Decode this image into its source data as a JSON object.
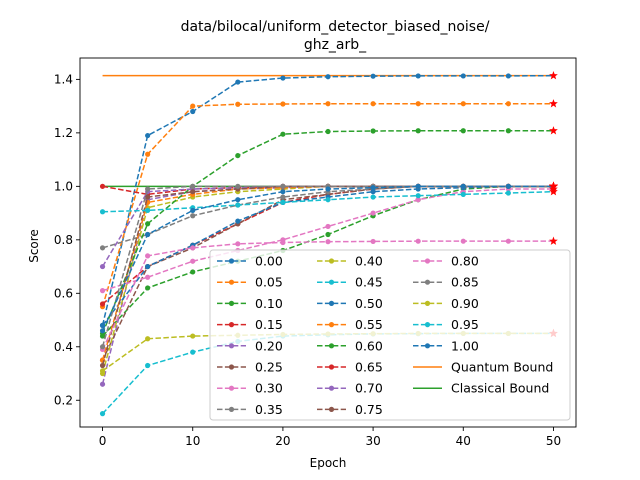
{
  "chart_data": {
    "type": "line",
    "title_lines": [
      "data/bilocal/uniform_detector_biased_noise/",
      "ghz_arb_"
    ],
    "xlabel": "Epoch",
    "ylabel": "Score",
    "xlim": [
      -2.5,
      52.5
    ],
    "ylim": [
      0.1,
      1.48
    ],
    "xticks": [
      0,
      10,
      20,
      30,
      40,
      50
    ],
    "yticks": [
      0.2,
      0.4,
      0.6,
      0.8,
      1.0,
      1.2,
      1.4
    ],
    "x": [
      0,
      5,
      10,
      15,
      20,
      25,
      30,
      35,
      40,
      45,
      50
    ],
    "legend_position": "lower-right",
    "legend_columns": 3,
    "series": [
      {
        "name": "0.00",
        "color": "#1f77b4",
        "values": [
          0.48,
          1.19,
          1.28,
          1.39,
          1.405,
          1.41,
          1.412,
          1.413,
          1.413,
          1.413,
          1.414
        ]
      },
      {
        "name": "0.05",
        "color": "#ff7f0e",
        "values": [
          0.55,
          1.12,
          1.3,
          1.307,
          1.308,
          1.309,
          1.309,
          1.309,
          1.309,
          1.309,
          1.309
        ]
      },
      {
        "name": "0.10",
        "color": "#2ca02c",
        "values": [
          0.44,
          0.62,
          0.68,
          0.72,
          0.76,
          0.82,
          0.89,
          0.95,
          0.99,
          1.0,
          1.0
        ]
      },
      {
        "name": "0.15",
        "color": "#d62728",
        "values": [
          0.56,
          0.7,
          0.78,
          0.86,
          0.94,
          0.97,
          0.99,
          1.0,
          1.0,
          1.0,
          1.0
        ]
      },
      {
        "name": "0.20",
        "color": "#9467bd",
        "values": [
          0.26,
          0.95,
          0.98,
          0.99,
          0.995,
          1.0,
          1.0,
          1.0,
          1.0,
          1.0,
          1.0
        ]
      },
      {
        "name": "0.25",
        "color": "#8c564b",
        "values": [
          0.35,
          0.7,
          0.77,
          0.86,
          0.95,
          0.97,
          0.99,
          1.0,
          1.0,
          1.0,
          1.0
        ]
      },
      {
        "name": "0.30",
        "color": "#e377c2",
        "values": [
          0.61,
          0.66,
          0.72,
          0.76,
          0.8,
          0.85,
          0.9,
          0.95,
          0.98,
          0.99,
          0.99
        ]
      },
      {
        "name": "0.35",
        "color": "#7f7f7f",
        "values": [
          0.77,
          0.82,
          0.89,
          0.93,
          0.96,
          0.98,
          0.99,
          1.0,
          1.0,
          1.0,
          1.0
        ]
      },
      {
        "name": "0.40",
        "color": "#bcbd22",
        "values": [
          0.3,
          0.92,
          0.96,
          0.98,
          0.99,
          1.0,
          1.0,
          1.0,
          1.0,
          1.0,
          1.0
        ]
      },
      {
        "name": "0.45",
        "color": "#17becf",
        "values": [
          0.15,
          0.33,
          0.38,
          0.42,
          0.44,
          0.445,
          0.448,
          0.449,
          0.45,
          0.45,
          0.45
        ]
      },
      {
        "name": "0.50",
        "color": "#1f77b4",
        "values": [
          0.48,
          0.7,
          0.78,
          0.87,
          0.94,
          0.96,
          0.98,
          0.99,
          0.995,
          1.0,
          1.0
        ]
      },
      {
        "name": "0.55",
        "color": "#ff7f0e",
        "values": [
          0.35,
          0.94,
          0.97,
          0.99,
          0.995,
          1.0,
          1.0,
          1.0,
          1.0,
          1.0,
          1.0
        ]
      },
      {
        "name": "0.60",
        "color": "#2ca02c",
        "values": [
          0.45,
          0.86,
          1.0,
          1.115,
          1.195,
          1.205,
          1.207,
          1.208,
          1.208,
          1.208,
          1.208
        ]
      },
      {
        "name": "0.65",
        "color": "#d62728",
        "values": [
          1.0,
          0.97,
          0.99,
          0.995,
          1.0,
          1.0,
          1.0,
          1.0,
          1.0,
          1.0,
          1.0
        ]
      },
      {
        "name": "0.70",
        "color": "#9467bd",
        "values": [
          0.7,
          0.98,
          0.99,
          0.995,
          1.0,
          1.0,
          1.0,
          1.0,
          1.0,
          1.0,
          1.0
        ]
      },
      {
        "name": "0.75",
        "color": "#8c564b",
        "values": [
          0.33,
          0.96,
          0.98,
          0.99,
          1.0,
          1.0,
          1.0,
          1.0,
          1.0,
          1.0,
          1.0
        ]
      },
      {
        "name": "0.80",
        "color": "#e377c2",
        "values": [
          0.39,
          0.74,
          0.77,
          0.785,
          0.79,
          0.793,
          0.794,
          0.795,
          0.795,
          0.795,
          0.795
        ]
      },
      {
        "name": "0.85",
        "color": "#7f7f7f",
        "values": [
          0.4,
          0.99,
          1.0,
          1.0,
          1.0,
          1.0,
          1.0,
          1.0,
          1.0,
          1.0,
          1.0
        ]
      },
      {
        "name": "0.90",
        "color": "#bcbd22",
        "values": [
          0.31,
          0.43,
          0.44,
          0.443,
          0.446,
          0.448,
          0.449,
          0.45,
          0.45,
          0.45,
          0.45
        ]
      },
      {
        "name": "0.95",
        "color": "#17becf",
        "values": [
          0.905,
          0.91,
          0.92,
          0.93,
          0.94,
          0.95,
          0.96,
          0.965,
          0.97,
          0.975,
          0.98
        ]
      },
      {
        "name": "1.00",
        "color": "#1f77b4",
        "values": [
          0.46,
          0.82,
          0.91,
          0.95,
          0.98,
          0.99,
          0.995,
          1.0,
          1.0,
          1.0,
          1.0
        ]
      }
    ],
    "bounds": [
      {
        "name": "Quantum Bound",
        "color": "#ff7f0e",
        "value": 1.414
      },
      {
        "name": "Classical Bound",
        "color": "#2ca02c",
        "value": 1.0
      }
    ],
    "final_marker_color": "#ff0000"
  }
}
